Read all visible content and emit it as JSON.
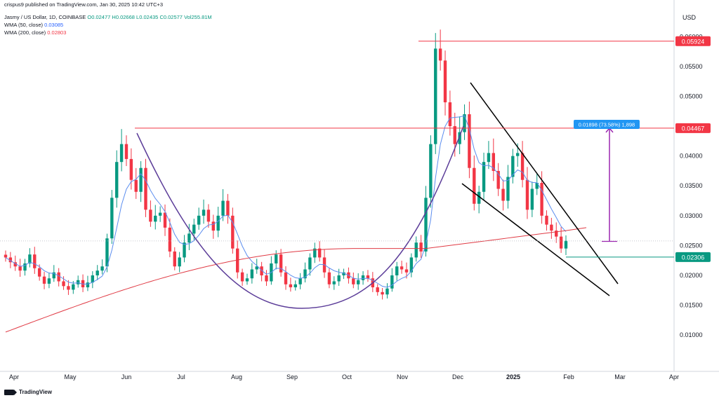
{
  "header": {
    "publisher": "crispus9 published on TradingView.com, Jan 30, 2025 10:42 UTC+3",
    "symbol": "Jasmy / US Dollar, 1D, COINBASE",
    "ohlc": {
      "o": "O0.02477",
      "h": "H0.02668",
      "l": "L0.02435",
      "c": "C0.02577",
      "vol": "Vol255.81M"
    },
    "wma50": {
      "label": "WMA (50, close)",
      "value": "0.03085"
    },
    "wma200": {
      "label": "WMA (200, close)",
      "value": "0.02803"
    }
  },
  "currency": "USD",
  "footer": {
    "brand": "TradingView"
  },
  "colors": {
    "up": "#089981",
    "down": "#f23645",
    "wma50": "#5b8def",
    "wma200": "#e03a44",
    "pattern": "#5c3d99",
    "measure": "#9c27b0",
    "wedge": "#000000"
  },
  "chart_data": {
    "type": "candlestick",
    "y_ticks": [
      "0.01000",
      "0.01500",
      "0.02000",
      "0.02500",
      "0.03000",
      "0.03500",
      "0.04000",
      "0.04500",
      "0.05000",
      "0.05500",
      "0.06000"
    ],
    "ylim": [
      0.0045,
      0.0645
    ],
    "x_ticks": [
      "Apr",
      "May",
      "Jun",
      "Jul",
      "Aug",
      "Sep",
      "Oct",
      "Nov",
      "Dec",
      "2025",
      "Feb",
      "Mar",
      "Apr"
    ],
    "bold_tick": "2025",
    "price_levels": [
      {
        "label": "0.05924",
        "value": 0.05924,
        "color": "#f23645"
      },
      {
        "label": "0.04467",
        "value": 0.04467,
        "color": "#f23645"
      },
      {
        "label": "0.02306",
        "value": 0.02306,
        "color": "#089981"
      }
    ],
    "measure": {
      "label": "0.01898 (73.58%) 1,898",
      "from": 0.02569,
      "to": 0.04467
    },
    "close_series": [
      0.023,
      0.0222,
      0.0215,
      0.0208,
      0.022,
      0.0235,
      0.0212,
      0.0198,
      0.0186,
      0.0195,
      0.0205,
      0.019,
      0.0182,
      0.0176,
      0.0185,
      0.0192,
      0.018,
      0.0188,
      0.02,
      0.0208,
      0.0215,
      0.0262,
      0.033,
      0.039,
      0.042,
      0.0395,
      0.036,
      0.034,
      0.038,
      0.031,
      0.029,
      0.03,
      0.0305,
      0.028,
      0.024,
      0.0215,
      0.023,
      0.0255,
      0.027,
      0.0285,
      0.03,
      0.031,
      0.029,
      0.0275,
      0.03,
      0.0325,
      0.03,
      0.0245,
      0.0205,
      0.019,
      0.0195,
      0.021,
      0.0215,
      0.02,
      0.019,
      0.022,
      0.0235,
      0.0205,
      0.0185,
      0.018,
      0.0185,
      0.0195,
      0.021,
      0.023,
      0.0245,
      0.023,
      0.0205,
      0.0185,
      0.019,
      0.02,
      0.0205,
      0.0195,
      0.0185,
      0.0192,
      0.02,
      0.0195,
      0.018,
      0.0172,
      0.0168,
      0.0178,
      0.02,
      0.0215,
      0.021,
      0.0205,
      0.023,
      0.0255,
      0.024,
      0.033,
      0.042,
      0.058,
      0.056,
      0.049,
      0.045,
      0.042,
      0.044,
      0.047,
      0.038,
      0.032,
      0.034,
      0.039,
      0.0405,
      0.0375,
      0.0345,
      0.0325,
      0.0365,
      0.04,
      0.0405,
      0.036,
      0.031,
      0.0345,
      0.0355,
      0.03,
      0.0285,
      0.0275,
      0.0265,
      0.0245,
      0.0258
    ]
  }
}
